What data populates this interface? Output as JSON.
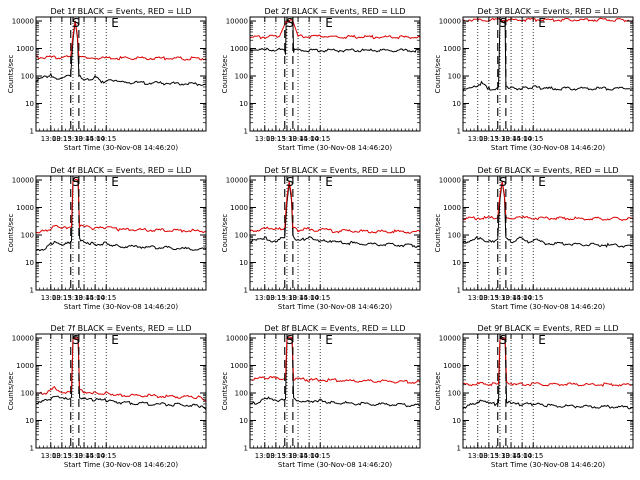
{
  "figure": {
    "background": "#ffffff",
    "black_color": "#000000",
    "red_color": "#dd0000"
  },
  "chart_data": [
    {
      "type": "line",
      "title": "Det 1f BLACK = Events, RED = LLD",
      "xlabel": "Start Time (30-Nov-08 14:46:20)",
      "ylabel": "Counts/sec",
      "yscale": "log",
      "ylim": [
        1,
        14000
      ],
      "xlim": [
        "12:40",
        "16:30"
      ],
      "x_ticks": [
        "13:00",
        "13:15",
        "13:30",
        "13:45",
        "14:00",
        "14:15"
      ],
      "y_ticks": [
        "1",
        "10",
        "100",
        "1000",
        "10000"
      ],
      "y_tick_values": [
        1,
        10,
        100,
        1000,
        10000
      ],
      "grid": "dotted vertical lines at x ticks",
      "markers": [
        {
          "label": "S",
          "x": "13:34",
          "dashed_lines": [
            "13:27",
            "13:38"
          ]
        },
        {
          "label": "E",
          "x": "14:27"
        }
      ],
      "series": [
        {
          "name": "Events",
          "color": "black",
          "x": [
            "12:40",
            "13:00",
            "13:10",
            "13:20",
            "13:27",
            "13:30",
            "13:33",
            "13:36",
            "13:38",
            "13:45",
            "14:00",
            "14:10",
            "14:20",
            "14:30",
            "16:30"
          ],
          "values": [
            70,
            110,
            80,
            90,
            100,
            2000,
            10000,
            2500,
            120,
            70,
            90,
            60,
            80,
            60,
            50
          ]
        },
        {
          "name": "LLD",
          "color": "red",
          "x": [
            "12:40",
            "13:15",
            "13:27",
            "13:30",
            "13:33",
            "13:36",
            "13:38",
            "14:00",
            "16:30"
          ],
          "values": [
            480,
            480,
            500,
            3000,
            10000,
            3000,
            480,
            450,
            430
          ]
        }
      ]
    },
    {
      "type": "line",
      "title": "Det 2f BLACK = Events, RED = LLD",
      "xlabel": "Start Time (30-Nov-08 14:46:20)",
      "ylabel": "Counts/sec",
      "yscale": "log",
      "ylim": [
        1,
        14000
      ],
      "xlim": [
        "12:40",
        "16:30"
      ],
      "x_ticks": [
        "13:00",
        "13:15",
        "13:30",
        "13:45",
        "14:00",
        "14:15"
      ],
      "y_ticks": [
        "1",
        "10",
        "100",
        "1000",
        "10000"
      ],
      "y_tick_values": [
        1,
        10,
        100,
        1000,
        10000
      ],
      "grid": "dotted vertical lines at x ticks",
      "markers": [
        {
          "label": "S",
          "x": "13:34",
          "dashed_lines": [
            "13:27",
            "13:38"
          ]
        },
        {
          "label": "E",
          "x": "14:27"
        }
      ],
      "series": [
        {
          "name": "Events",
          "color": "black",
          "x": [
            "12:40",
            "13:26",
            "13:27",
            "13:28",
            "13:29",
            "13:38",
            "13:39",
            "13:40",
            "16:30"
          ],
          "values": [
            900,
            900,
            850,
            600,
            10000,
            10000,
            700,
            850,
            850
          ]
        },
        {
          "name": "LLD",
          "color": "red",
          "x": [
            "12:40",
            "13:20",
            "13:29",
            "13:38",
            "13:45",
            "16:30"
          ],
          "values": [
            2500,
            2800,
            10000,
            10000,
            2800,
            2500
          ]
        }
      ]
    },
    {
      "type": "line",
      "title": "Det 3f BLACK = Events, RED = LLD",
      "xlabel": "Start Time (30-Nov-08 14:46:20)",
      "ylabel": "Counts/sec",
      "yscale": "log",
      "ylim": [
        1,
        14000
      ],
      "xlim": [
        "12:40",
        "16:30"
      ],
      "x_ticks": [
        "13:00",
        "13:15",
        "13:30",
        "13:45",
        "14:00",
        "14:15"
      ],
      "y_ticks": [
        "1",
        "10",
        "100",
        "1000",
        "10000"
      ],
      "y_tick_values": [
        1,
        10,
        100,
        1000,
        10000
      ],
      "grid": "dotted vertical lines at x ticks",
      "markers": [
        {
          "label": "S",
          "x": "13:34",
          "dashed_lines": [
            "13:27",
            "13:38"
          ]
        },
        {
          "label": "E",
          "x": "14:27"
        }
      ],
      "series": [
        {
          "name": "Events",
          "color": "black",
          "x": [
            "12:40",
            "12:50",
            "13:05",
            "13:15",
            "13:25",
            "13:28",
            "13:30",
            "13:37",
            "13:38",
            "13:45",
            "14:00",
            "14:15",
            "14:30",
            "16:30"
          ],
          "values": [
            30,
            35,
            55,
            35,
            35,
            40,
            10000,
            10000,
            45,
            35,
            35,
            40,
            35,
            35
          ]
        },
        {
          "name": "LLD",
          "color": "red",
          "x": [
            "12:40",
            "16:30"
          ],
          "values": [
            11000,
            11000
          ]
        }
      ]
    },
    {
      "type": "line",
      "title": "Det 4f BLACK = Events, RED = LLD",
      "xlabel": "Start Time (30-Nov-08 14:46:20)",
      "ylabel": "Counts/sec",
      "yscale": "log",
      "ylim": [
        1,
        14000
      ],
      "xlim": [
        "12:40",
        "16:30"
      ],
      "x_ticks": [
        "13:00",
        "13:15",
        "13:30",
        "13:45",
        "14:00",
        "14:15"
      ],
      "y_ticks": [
        "1",
        "10",
        "100",
        "1000",
        "10000"
      ],
      "y_tick_values": [
        1,
        10,
        100,
        1000,
        10000
      ],
      "grid": "dotted vertical lines at x ticks",
      "markers": [
        {
          "label": "S",
          "x": "13:34",
          "dashed_lines": [
            "13:27",
            "13:38"
          ]
        },
        {
          "label": "E",
          "x": "14:27"
        }
      ],
      "series": [
        {
          "name": "Events",
          "color": "black",
          "x": [
            "12:40",
            "12:55",
            "13:05",
            "13:15",
            "13:25",
            "13:28",
            "13:30",
            "13:37",
            "13:39",
            "13:45",
            "14:00",
            "14:15",
            "14:30",
            "16:30"
          ],
          "values": [
            25,
            35,
            60,
            45,
            50,
            60,
            10000,
            10000,
            70,
            60,
            45,
            50,
            40,
            30
          ]
        },
        {
          "name": "LLD",
          "color": "red",
          "x": [
            "12:40",
            "12:55",
            "13:05",
            "13:15",
            "13:25",
            "13:28",
            "13:30",
            "13:37",
            "13:39",
            "13:45",
            "14:00",
            "14:15",
            "14:30",
            "16:30"
          ],
          "values": [
            130,
            140,
            220,
            170,
            190,
            200,
            10000,
            10000,
            220,
            200,
            170,
            190,
            160,
            140
          ]
        }
      ]
    },
    {
      "type": "line",
      "title": "Det 5f BLACK = Events, RED = LLD",
      "xlabel": "Start Time (30-Nov-08 14:46:20)",
      "ylabel": "Counts/sec",
      "yscale": "log",
      "ylim": [
        1,
        14000
      ],
      "xlim": [
        "12:40",
        "16:30"
      ],
      "x_ticks": [
        "13:00",
        "13:15",
        "13:30",
        "13:45",
        "14:00",
        "14:15"
      ],
      "y_ticks": [
        "1",
        "10",
        "100",
        "1000",
        "10000"
      ],
      "y_tick_values": [
        1,
        10,
        100,
        1000,
        10000
      ],
      "grid": "dotted vertical lines at x ticks",
      "markers": [
        {
          "label": "S",
          "x": "13:34",
          "dashed_lines": [
            "13:27",
            "13:38"
          ]
        },
        {
          "label": "E",
          "x": "14:27"
        }
      ],
      "series": [
        {
          "name": "Events",
          "color": "black",
          "x": [
            "12:40",
            "13:00",
            "13:10",
            "13:20",
            "13:27",
            "13:30",
            "13:33",
            "13:36",
            "13:38",
            "13:45",
            "14:00",
            "14:10",
            "14:20",
            "14:30",
            "16:30"
          ],
          "values": [
            55,
            80,
            60,
            70,
            80,
            1500,
            8000,
            2000,
            90,
            60,
            80,
            60,
            70,
            55,
            40
          ]
        },
        {
          "name": "LLD",
          "color": "red",
          "x": [
            "12:40",
            "13:00",
            "13:10",
            "13:20",
            "13:27",
            "13:30",
            "13:33",
            "13:36",
            "13:38",
            "13:45",
            "14:00",
            "14:10",
            "14:20",
            "14:30",
            "16:30"
          ],
          "values": [
            130,
            180,
            150,
            170,
            180,
            2500,
            9000,
            3000,
            200,
            150,
            170,
            150,
            160,
            140,
            130
          ]
        }
      ]
    },
    {
      "type": "line",
      "title": "Det 6f BLACK = Events, RED = LLD",
      "xlabel": "Start Time (30-Nov-08 14:46:20)",
      "ylabel": "Counts/sec",
      "yscale": "log",
      "ylim": [
        1,
        14000
      ],
      "xlim": [
        "12:40",
        "16:30"
      ],
      "x_ticks": [
        "13:00",
        "13:15",
        "13:30",
        "13:45",
        "14:00",
        "14:15"
      ],
      "y_ticks": [
        "1",
        "10",
        "100",
        "1000",
        "10000"
      ],
      "y_tick_values": [
        1,
        10,
        100,
        1000,
        10000
      ],
      "grid": "dotted vertical lines at x ticks",
      "markers": [
        {
          "label": "S",
          "x": "13:34",
          "dashed_lines": [
            "13:27",
            "13:38"
          ]
        },
        {
          "label": "E",
          "x": "14:27"
        }
      ],
      "series": [
        {
          "name": "Events",
          "color": "black",
          "x": [
            "12:40",
            "13:00",
            "13:10",
            "13:20",
            "13:27",
            "13:30",
            "13:33",
            "13:36",
            "13:38",
            "13:45",
            "14:00",
            "14:10",
            "14:20",
            "14:30",
            "16:30"
          ],
          "values": [
            50,
            80,
            55,
            60,
            70,
            2000,
            9000,
            2500,
            80,
            55,
            80,
            55,
            65,
            50,
            40
          ]
        },
        {
          "name": "LLD",
          "color": "red",
          "x": [
            "12:40",
            "13:27",
            "13:30",
            "13:33",
            "13:36",
            "13:38",
            "14:00",
            "16:30"
          ],
          "values": [
            400,
            420,
            3000,
            9000,
            3000,
            430,
            420,
            380
          ]
        }
      ]
    },
    {
      "type": "line",
      "title": "Det 7f BLACK = Events, RED = LLD",
      "xlabel": "Start Time (30-Nov-08 14:46:20)",
      "ylabel": "Counts/sec",
      "yscale": "log",
      "ylim": [
        1,
        14000
      ],
      "xlim": [
        "12:40",
        "16:30"
      ],
      "x_ticks": [
        "13:00",
        "13:15",
        "13:30",
        "13:45",
        "14:00",
        "14:15"
      ],
      "y_ticks": [
        "1",
        "10",
        "100",
        "1000",
        "10000"
      ],
      "y_tick_values": [
        1,
        10,
        100,
        1000,
        10000
      ],
      "grid": "dotted vertical lines at x ticks",
      "markers": [
        {
          "label": "S",
          "x": "13:34",
          "dashed_lines": [
            "13:27",
            "13:38"
          ]
        },
        {
          "label": "E",
          "x": "14:27"
        }
      ],
      "series": [
        {
          "name": "Events",
          "color": "black",
          "x": [
            "12:40",
            "12:55",
            "13:05",
            "13:15",
            "13:25",
            "13:28",
            "13:30",
            "13:37",
            "13:39",
            "13:45",
            "14:00",
            "14:15",
            "14:30",
            "16:20",
            "16:30"
          ],
          "values": [
            45,
            55,
            80,
            60,
            60,
            70,
            10000,
            10000,
            70,
            60,
            55,
            55,
            45,
            35,
            25
          ]
        },
        {
          "name": "LLD",
          "color": "red",
          "x": [
            "12:40",
            "12:55",
            "13:05",
            "13:15",
            "13:25",
            "13:28",
            "13:30",
            "13:37",
            "13:39",
            "13:45",
            "14:00",
            "14:15",
            "14:30",
            "16:20",
            "16:30"
          ],
          "values": [
            90,
            100,
            150,
            110,
            110,
            120,
            10000,
            10000,
            130,
            110,
            100,
            100,
            85,
            70,
            55
          ]
        }
      ]
    },
    {
      "type": "line",
      "title": "Det 8f BLACK = Events, RED = LLD",
      "xlabel": "Start Time (30-Nov-08 14:46:20)",
      "ylabel": "Counts/sec",
      "yscale": "log",
      "ylim": [
        1,
        14000
      ],
      "xlim": [
        "12:40",
        "16:30"
      ],
      "x_ticks": [
        "13:00",
        "13:15",
        "13:30",
        "13:45",
        "14:00",
        "14:15"
      ],
      "y_ticks": [
        "1",
        "10",
        "100",
        "1000",
        "10000"
      ],
      "y_tick_values": [
        1,
        10,
        100,
        1000,
        10000
      ],
      "grid": "dotted vertical lines at x ticks",
      "markers": [
        {
          "label": "S",
          "x": "13:34",
          "dashed_lines": [
            "13:27",
            "13:38"
          ]
        },
        {
          "label": "E",
          "x": "14:27"
        }
      ],
      "series": [
        {
          "name": "Events",
          "color": "black",
          "x": [
            "12:40",
            "12:55",
            "13:05",
            "13:15",
            "13:25",
            "13:28",
            "13:30",
            "13:37",
            "13:39",
            "13:45",
            "14:00",
            "14:15",
            "14:30",
            "16:30"
          ],
          "values": [
            40,
            50,
            70,
            55,
            55,
            60,
            10000,
            10000,
            65,
            55,
            50,
            55,
            45,
            35
          ]
        },
        {
          "name": "LLD",
          "color": "red",
          "x": [
            "12:40",
            "13:05",
            "13:25",
            "13:28",
            "13:30",
            "13:37",
            "13:39",
            "14:00",
            "16:30"
          ],
          "values": [
            320,
            350,
            320,
            340,
            10000,
            10000,
            330,
            300,
            250
          ]
        }
      ]
    },
    {
      "type": "line",
      "title": "Det 9f BLACK = Events, RED = LLD",
      "xlabel": "Start Time (30-Nov-08 14:46:20)",
      "ylabel": "Counts/sec",
      "yscale": "log",
      "ylim": [
        1,
        14000
      ],
      "xlim": [
        "12:40",
        "16:30"
      ],
      "x_ticks": [
        "13:00",
        "13:15",
        "13:30",
        "13:45",
        "14:00",
        "14:15"
      ],
      "y_ticks": [
        "1",
        "10",
        "100",
        "1000",
        "10000"
      ],
      "y_tick_values": [
        1,
        10,
        100,
        1000,
        10000
      ],
      "grid": "dotted vertical lines at x ticks",
      "markers": [
        {
          "label": "S",
          "x": "13:34",
          "dashed_lines": [
            "13:27",
            "13:38"
          ]
        },
        {
          "label": "E",
          "x": "14:27"
        }
      ],
      "series": [
        {
          "name": "Events",
          "color": "black",
          "x": [
            "12:40",
            "12:55",
            "13:05",
            "13:15",
            "13:25",
            "13:28",
            "13:30",
            "13:37",
            "13:39",
            "13:45",
            "14:00",
            "14:15",
            "14:30",
            "16:30"
          ],
          "values": [
            30,
            40,
            55,
            40,
            40,
            45,
            10000,
            10000,
            50,
            40,
            38,
            40,
            35,
            30
          ]
        },
        {
          "name": "LLD",
          "color": "red",
          "x": [
            "12:40",
            "13:05",
            "13:25",
            "13:28",
            "13:30",
            "13:37",
            "13:39",
            "14:00",
            "16:30"
          ],
          "values": [
            200,
            220,
            210,
            220,
            10000,
            10000,
            230,
            210,
            200
          ]
        }
      ]
    }
  ]
}
